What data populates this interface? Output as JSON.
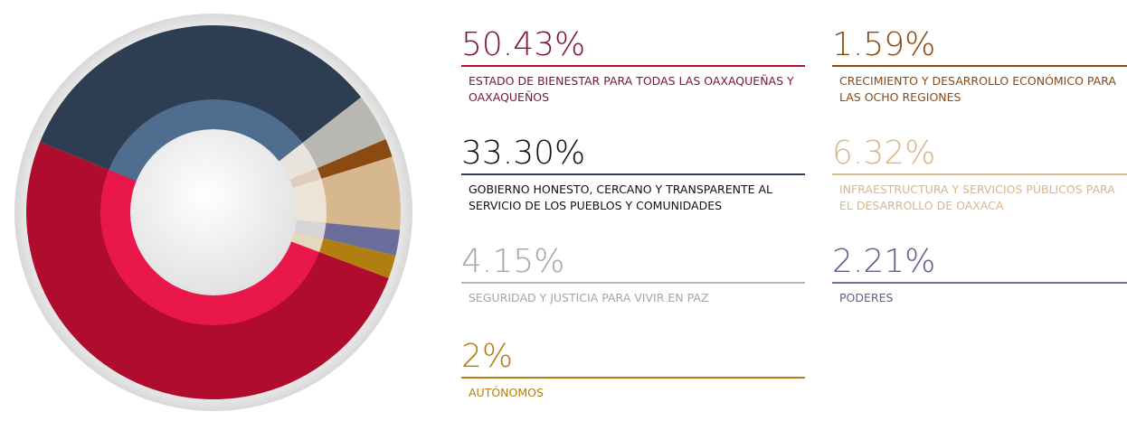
{
  "chart_data": {
    "type": "pie",
    "categories": [
      "ESTADO DE BIENESTAR PARA TODAS LAS OAXAQUEÑAS Y OAXAQUEÑOS",
      "GOBIERNO HONESTO, CERCANO Y TRANSPARENTE AL SERVICIO DE LOS PUEBLOS Y COMUNIDADES",
      "SEGURIDAD Y JUSTICIA PARA VIVIR EN PAZ",
      "CRECIMIENTO Y DESARROLLO ECONÓMICO PARA LAS OCHO REGIONES",
      "INFRAESTRUCTURA Y SERVICIOS PÚBLICOS PARA EL DESARROLLO DE OAXACA",
      "PODERES",
      "AUTÓNOMOS"
    ],
    "values": [
      50.43,
      33.3,
      4.15,
      1.59,
      6.32,
      2.21,
      2
    ],
    "value_labels": [
      "50.43%",
      "33.30%",
      "4.15%",
      "1.59%",
      "6.32%",
      "2.21%",
      "2%"
    ],
    "colors": [
      "#b00c2e",
      "#2d3e52",
      "#b9b7b1",
      "#8a4a12",
      "#d6b78e",
      "#6b6d9a",
      "#b07f10"
    ],
    "text_colors": [
      "#7a1436",
      "#111111",
      "#a6a6a6",
      "#8a4a12",
      "#d6b78e",
      "#5e608e",
      "#b07f10"
    ]
  }
}
